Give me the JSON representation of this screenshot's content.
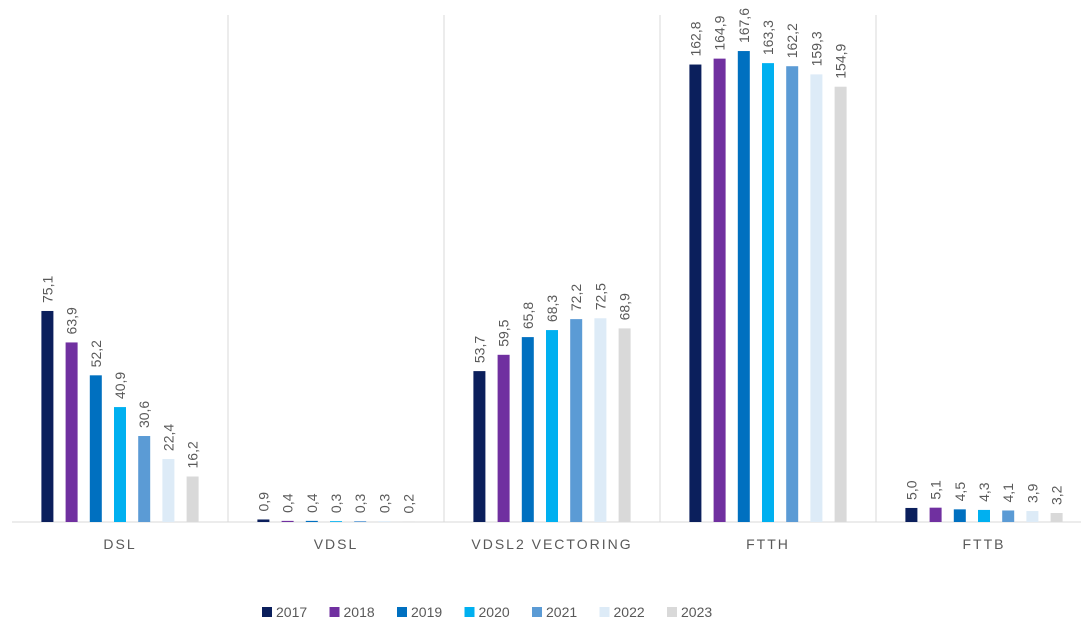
{
  "chart_data": {
    "type": "bar",
    "categories": [
      "DSL",
      "VDSL",
      "VDSL2 VECTORING",
      "FTTH",
      "FTTB"
    ],
    "series": [
      {
        "name": "2017",
        "color": "#0b1f5c",
        "values": [
          75.1,
          0.9,
          53.7,
          162.8,
          5.0
        ],
        "value_labels": [
          "75,1",
          "0,9",
          "53,7",
          "162,8",
          "5,0"
        ]
      },
      {
        "name": "2018",
        "color": "#7030a0",
        "values": [
          63.9,
          0.4,
          59.5,
          164.9,
          5.1
        ],
        "value_labels": [
          "63,9",
          "0,4",
          "59,5",
          "164,9",
          "5,1"
        ]
      },
      {
        "name": "2019",
        "color": "#0070c0",
        "values": [
          52.2,
          0.4,
          65.8,
          167.6,
          4.5
        ],
        "value_labels": [
          "52,2",
          "0,4",
          "65,8",
          "167,6",
          "4,5"
        ]
      },
      {
        "name": "2020",
        "color": "#00b0f0",
        "values": [
          40.9,
          0.3,
          68.3,
          163.3,
          4.3
        ],
        "value_labels": [
          "40,9",
          "0,3",
          "68,3",
          "163,3",
          "4,3"
        ]
      },
      {
        "name": "2021",
        "color": "#5b9bd5",
        "values": [
          30.6,
          0.3,
          72.2,
          162.2,
          4.1
        ],
        "value_labels": [
          "30,6",
          "0,3",
          "72,2",
          "162,2",
          "4,1"
        ]
      },
      {
        "name": "2022",
        "color": "#ddebf7",
        "values": [
          22.4,
          0.3,
          72.5,
          159.3,
          3.9
        ],
        "value_labels": [
          "22,4",
          "0,3",
          "72,5",
          "159,3",
          "3,9"
        ]
      },
      {
        "name": "2023",
        "color": "#d9d9d9",
        "values": [
          16.2,
          0.2,
          68.9,
          154.9,
          3.2
        ],
        "value_labels": [
          "16,2",
          "0,2",
          "68,9",
          "154,9",
          "3,2"
        ]
      }
    ],
    "legend": "bottom"
  }
}
